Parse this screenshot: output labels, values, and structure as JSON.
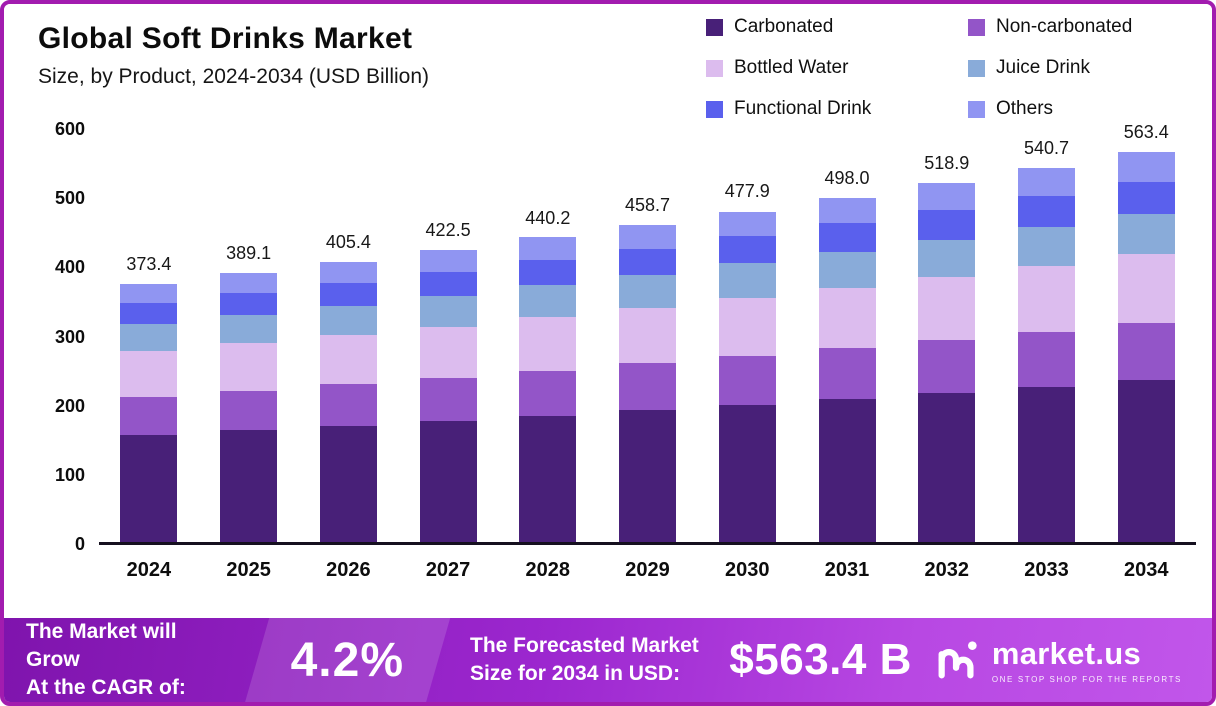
{
  "header": {
    "title": "Global Soft Drinks Market",
    "subtitle": "Size, by Product, 2024-2034 (USD Billion)"
  },
  "chart_data": {
    "type": "bar",
    "stacked": true,
    "title": "Global Soft Drinks Market",
    "subtitle": "Size, by Product, 2024-2034 (USD Billion)",
    "unit": "USD Billion",
    "grid": false,
    "legend_position": "top-right",
    "categories": [
      "2024",
      "2025",
      "2026",
      "2027",
      "2028",
      "2029",
      "2030",
      "2031",
      "2032",
      "2033",
      "2034"
    ],
    "totals": [
      "373.4",
      "389.1",
      "405.4",
      "422.5",
      "440.2",
      "458.7",
      "477.9",
      "498.0",
      "518.9",
      "540.7",
      "563.4"
    ],
    "ylim": [
      0,
      600
    ],
    "yticks": [
      0,
      100,
      200,
      300,
      400,
      500,
      600
    ],
    "series": [
      {
        "name": "Carbonated",
        "color": "#482078",
        "values": [
          155.0,
          161.5,
          168.2,
          175.3,
          182.7,
          190.4,
          198.3,
          206.7,
          215.3,
          224.4,
          233.8
        ]
      },
      {
        "name": "Non-carbonated",
        "color": "#9355c8",
        "values": [
          55.3,
          57.6,
          60.0,
          62.5,
          65.1,
          67.9,
          70.7,
          73.7,
          76.8,
          80.0,
          83.4
        ]
      },
      {
        "name": "Bottled Water",
        "color": "#dcbcee",
        "values": [
          65.3,
          68.1,
          71.0,
          73.9,
          77.0,
          80.3,
          83.6,
          87.2,
          90.8,
          94.6,
          98.6
        ]
      },
      {
        "name": "Juice Drink",
        "color": "#89abd9",
        "values": [
          39.2,
          40.9,
          42.6,
          44.4,
          46.2,
          48.2,
          50.2,
          52.3,
          54.5,
          56.8,
          59.2
        ]
      },
      {
        "name": "Functional Drink",
        "color": "#5a60ed",
        "values": [
          30.6,
          31.9,
          33.2,
          34.6,
          36.1,
          37.6,
          39.2,
          40.8,
          42.5,
          44.3,
          46.2
        ]
      },
      {
        "name": "Others",
        "color": "#9095f2",
        "values": [
          28.0,
          29.1,
          30.4,
          31.8,
          33.1,
          34.3,
          35.9,
          37.3,
          39.0,
          40.6,
          42.2
        ]
      }
    ]
  },
  "footer": {
    "cagr_label": "The Market will Grow\nAt the CAGR of:",
    "cagr_value": "4.2%",
    "forecast_label": "The Forecasted Market\nSize for 2034 in USD:",
    "forecast_value": "$563.4 B",
    "brand": "market.us",
    "brand_tagline": "ONE STOP SHOP FOR THE REPORTS"
  }
}
